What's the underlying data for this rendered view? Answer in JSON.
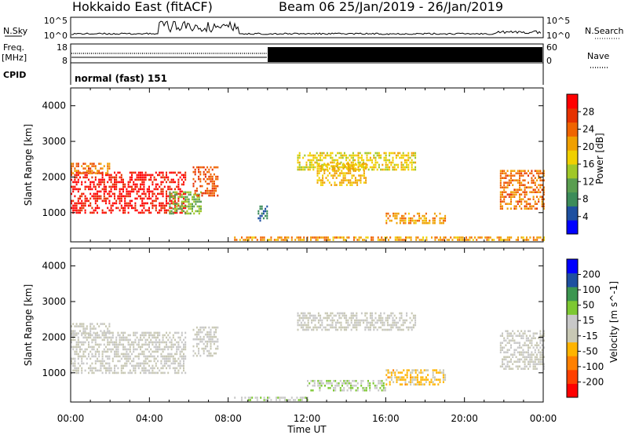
{
  "header": {
    "station": "Hokkaido East (fitACF)",
    "beam": "Beam 06",
    "date_range": "25/Jan/2019 - 26/Jan/2019"
  },
  "top_panels": {
    "nsky_label": "N.Sky",
    "nsearch_label": "N.Search",
    "nsky_ticks": [
      "10^5",
      "10^0"
    ],
    "nsearch_ticks": [
      "10^5",
      "10^0"
    ],
    "freq_label_1": "Freq.",
    "freq_label_2": "[MHz]",
    "freq_ticks": [
      "18",
      "8"
    ],
    "nave_label": "Nave",
    "nave_ticks": [
      "60",
      "0"
    ],
    "cpid_label": "CPID",
    "cpid_text": "normal (fast) 151"
  },
  "time_axis": {
    "label": "Time UT",
    "ticks": [
      "00:00",
      "04:00",
      "08:00",
      "12:00",
      "16:00",
      "20:00",
      "00:00"
    ],
    "range_hours": [
      0,
      24
    ]
  },
  "colors": {
    "power": [
      "#0000ff",
      "#1e50a0",
      "#3c8c5a",
      "#5a9e50",
      "#a0c828",
      "#f0d000",
      "#f0a000",
      "#f06400",
      "#e63200",
      "#ff0000"
    ],
    "velocity": [
      "#ff0000",
      "#ff4000",
      "#ff8000",
      "#ffb400",
      "#c8c8b4",
      "#c8c8c8",
      "#7dc832",
      "#3c9650",
      "#1e50a0",
      "#0000ff"
    ]
  },
  "chart_data": [
    {
      "type": "heatmap",
      "title": "",
      "xlabel": "Time UT",
      "ylabel": "Slant Range [km]",
      "xlim": [
        0,
        24
      ],
      "ylim": [
        180,
        4500
      ],
      "yticks": [
        1000,
        2000,
        3000,
        4000
      ],
      "colorbar_label": "Power [dB]",
      "colorbar_ticks": [
        "4",
        "8",
        "12",
        "16",
        "20",
        "24",
        "28"
      ],
      "clim": [
        0,
        30
      ],
      "regions": [
        {
          "t": [
            0.0,
            5.8
          ],
          "r": [
            1000,
            2150
          ],
          "value": 28
        },
        {
          "t": [
            0.0,
            2.0
          ],
          "r": [
            2100,
            2400
          ],
          "value": 22
        },
        {
          "t": [
            5.0,
            6.6
          ],
          "r": [
            1000,
            1600
          ],
          "value": 12
        },
        {
          "t": [
            6.2,
            7.5
          ],
          "r": [
            1500,
            2300
          ],
          "value": 24
        },
        {
          "t": [
            9.5,
            10.0
          ],
          "r": [
            800,
            1200
          ],
          "value": 6
        },
        {
          "t": [
            8.3,
            24.0
          ],
          "r": [
            200,
            330
          ],
          "value": 20
        },
        {
          "t": [
            11.5,
            17.5
          ],
          "r": [
            2200,
            2700
          ],
          "value": 16
        },
        {
          "t": [
            12.5,
            15.0
          ],
          "r": [
            1800,
            2400
          ],
          "value": 18
        },
        {
          "t": [
            16.0,
            19.0
          ],
          "r": [
            700,
            1000
          ],
          "value": 20
        },
        {
          "t": [
            21.8,
            24.0
          ],
          "r": [
            1100,
            2200
          ],
          "value": 22
        }
      ]
    },
    {
      "type": "heatmap",
      "title": "",
      "xlabel": "Time UT",
      "ylabel": "Slant Range [km]",
      "xlim": [
        0,
        24
      ],
      "ylim": [
        180,
        4500
      ],
      "yticks": [
        1000,
        2000,
        3000,
        4000
      ],
      "colorbar_label": "Velocity [m s^-1]",
      "colorbar_ticks": [
        "-200",
        "-100",
        "-50",
        "-15",
        "15",
        "50",
        "100",
        "200"
      ],
      "clim": [
        -250,
        250
      ],
      "regions": [
        {
          "t": [
            0.0,
            5.8
          ],
          "r": [
            1000,
            2150
          ],
          "value": 0
        },
        {
          "t": [
            0.0,
            2.0
          ],
          "r": [
            2100,
            2400
          ],
          "value": 0
        },
        {
          "t": [
            6.2,
            7.5
          ],
          "r": [
            1500,
            2300
          ],
          "value": 0
        },
        {
          "t": [
            8.3,
            12.0
          ],
          "r": [
            200,
            330
          ],
          "value": 40
        },
        {
          "t": [
            11.5,
            17.5
          ],
          "r": [
            2200,
            2700
          ],
          "value": 0
        },
        {
          "t": [
            12.0,
            16.0
          ],
          "r": [
            500,
            800
          ],
          "value": 40
        },
        {
          "t": [
            16.0,
            19.0
          ],
          "r": [
            700,
            1100
          ],
          "value": -60
        },
        {
          "t": [
            21.8,
            24.0
          ],
          "r": [
            1100,
            2200
          ],
          "value": 0
        }
      ]
    }
  ]
}
